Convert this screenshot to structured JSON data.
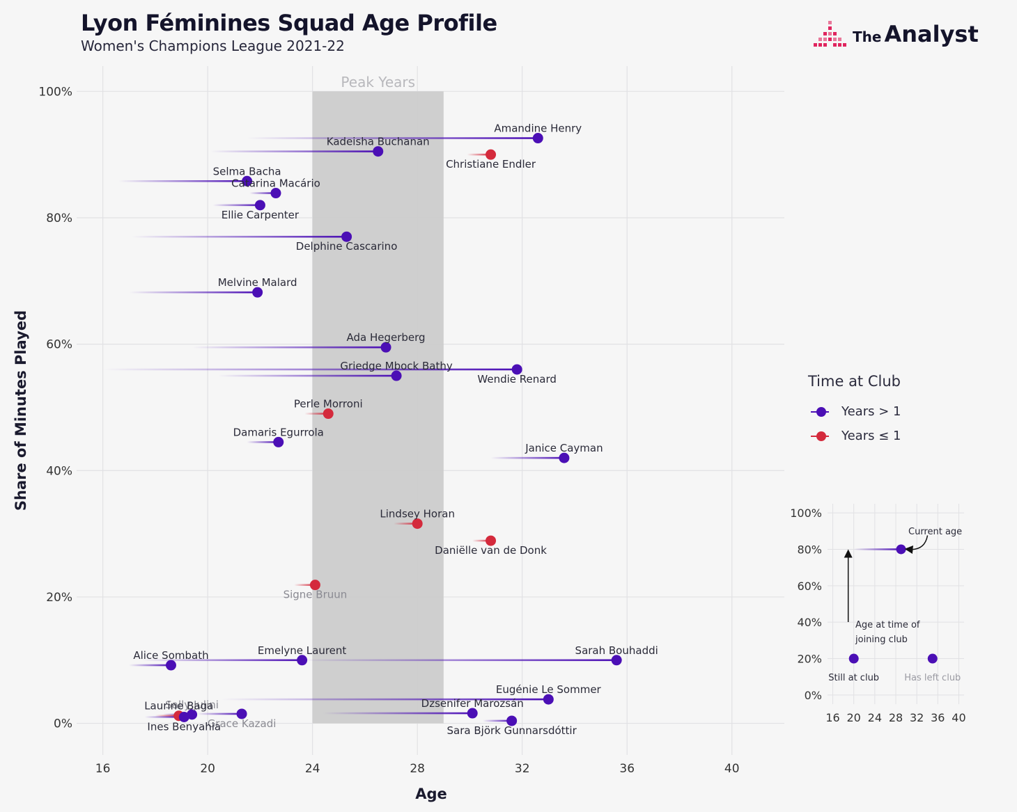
{
  "header": {
    "title": "Lyon Féminines Squad Age Profile",
    "subtitle": "Women's Champions League 2021-22",
    "logo_the": "The",
    "logo_analyst": "Analyst"
  },
  "colors": {
    "years_gt_1": "#4b0fb5",
    "years_le_1": "#d42a3c",
    "peak_band": "#cccccc",
    "logo_accent": "#e0245e"
  },
  "chart_data": [
    {
      "type": "scatter",
      "title": "",
      "xlabel": "Age",
      "ylabel": "Share of Minutes Played",
      "xlim": [
        15,
        42
      ],
      "ylim": [
        -5,
        104
      ],
      "xticks": [
        "16",
        "20",
        "24",
        "28",
        "32",
        "36",
        "40"
      ],
      "xtick_values": [
        16,
        20,
        24,
        28,
        32,
        36,
        40
      ],
      "yticks": [
        "0%",
        "20%",
        "40%",
        "60%",
        "80%",
        "100%"
      ],
      "ytick_values": [
        0,
        20,
        40,
        60,
        80,
        100
      ],
      "grid": true,
      "peak_band": {
        "label": "Peak Years",
        "from_age": 24,
        "to_age": 29,
        "from_share": 0,
        "to_share": 100
      },
      "legend": {
        "title": "Time at Club",
        "placement": "right",
        "entries": [
          {
            "label": "Years > 1",
            "group": "long"
          },
          {
            "label": "Years ≤ 1",
            "group": "short"
          }
        ]
      },
      "players": [
        {
          "name": "Amandine Henry",
          "age": 32.6,
          "joined": 21.5,
          "share": 92.6,
          "group": "long",
          "label_side": "above",
          "still": true
        },
        {
          "name": "Kadeisha Buchanan",
          "age": 26.5,
          "joined": 20.1,
          "share": 90.5,
          "group": "long",
          "label_side": "above",
          "still": true
        },
        {
          "name": "Christiane Endler",
          "age": 30.8,
          "joined": 29.9,
          "share": 90.0,
          "group": "short",
          "label_side": "below",
          "still": true
        },
        {
          "name": "Selma Bacha",
          "age": 21.5,
          "joined": 16.6,
          "share": 85.8,
          "group": "long",
          "label_side": "above",
          "still": true
        },
        {
          "name": "Catarina Macário",
          "age": 22.6,
          "joined": 21.6,
          "share": 83.9,
          "group": "long",
          "label_side": "above",
          "still": true
        },
        {
          "name": "Ellie Carpenter",
          "age": 22.0,
          "joined": 20.2,
          "share": 82.0,
          "group": "long",
          "label_side": "below",
          "still": true
        },
        {
          "name": "Delphine Cascarino",
          "age": 25.3,
          "joined": 17.1,
          "share": 77.0,
          "group": "long",
          "label_side": "below",
          "still": true
        },
        {
          "name": "Melvine Malard",
          "age": 21.9,
          "joined": 17.0,
          "share": 68.2,
          "group": "long",
          "label_side": "above",
          "still": true
        },
        {
          "name": "Ada Hegerberg",
          "age": 26.8,
          "joined": 19.4,
          "share": 59.5,
          "group": "long",
          "label_side": "above",
          "still": true
        },
        {
          "name": "Wendie Renard",
          "age": 31.8,
          "joined": 16.0,
          "share": 56.0,
          "group": "long",
          "label_side": "below",
          "still": true
        },
        {
          "name": "Griedge Mbock Bathy",
          "age": 27.2,
          "joined": 20.4,
          "share": 55.0,
          "group": "long",
          "label_side": "above",
          "still": true
        },
        {
          "name": "Perle Morroni",
          "age": 24.6,
          "joined": 23.7,
          "share": 49.0,
          "group": "short",
          "label_side": "above",
          "still": true
        },
        {
          "name": "Damaris Egurrola",
          "age": 22.7,
          "joined": 21.5,
          "share": 44.5,
          "group": "long",
          "label_side": "above",
          "still": true
        },
        {
          "name": "Janice Cayman",
          "age": 33.6,
          "joined": 30.8,
          "share": 42.0,
          "group": "long",
          "label_side": "above",
          "still": true
        },
        {
          "name": "Lindsey Horan",
          "age": 28.0,
          "joined": 27.1,
          "share": 31.6,
          "group": "short",
          "label_side": "above",
          "still": true
        },
        {
          "name": "Daniëlle van de Donk",
          "age": 30.8,
          "joined": 30.1,
          "share": 28.9,
          "group": "short",
          "label_side": "below",
          "still": true
        },
        {
          "name": "Signe Bruun",
          "age": 24.1,
          "joined": 23.3,
          "share": 21.9,
          "group": "short",
          "label_side": "below",
          "still": false
        },
        {
          "name": "Alice Sombath",
          "age": 18.6,
          "joined": 17.0,
          "share": 9.2,
          "group": "long",
          "label_side": "above",
          "still": true
        },
        {
          "name": "Emelyne Laurent",
          "age": 23.6,
          "joined": 17.5,
          "share": 10.0,
          "group": "long",
          "label_side": "above",
          "still": true
        },
        {
          "name": "Sarah Bouhaddi",
          "age": 35.6,
          "joined": 23.5,
          "share": 10.0,
          "group": "long",
          "label_side": "above",
          "still": true
        },
        {
          "name": "Eugénie Le Sommer",
          "age": 33.0,
          "joined": 20.5,
          "share": 3.8,
          "group": "long",
          "label_side": "above",
          "still": true
        },
        {
          "name": "Dzsenifer Marozsán",
          "age": 30.1,
          "joined": 24.4,
          "share": 1.6,
          "group": "long",
          "label_side": "above",
          "still": true
        },
        {
          "name": "Sara Björk Gunnarsdóttir",
          "age": 31.6,
          "joined": 30.5,
          "share": 0.4,
          "group": "long",
          "label_side": "below",
          "still": true
        },
        {
          "name": "Sally Julini",
          "age": 19.4,
          "joined": 18.3,
          "share": 1.4,
          "group": "long",
          "label_side": "above",
          "still": false
        },
        {
          "name": "Laurine Baga",
          "age": 18.9,
          "joined": 18.0,
          "share": 1.2,
          "group": "short",
          "label_side": "above",
          "still": true
        },
        {
          "name": "Grace Kazadi",
          "age": 21.3,
          "joined": 19.6,
          "share": 1.5,
          "group": "long",
          "label_side": "below",
          "still": false
        },
        {
          "name": "Ines Benyahia",
          "age": 19.1,
          "joined": 17.6,
          "share": 1.0,
          "group": "long",
          "label_side": "below",
          "still": true
        }
      ]
    },
    {
      "type": "scatter",
      "title": "",
      "xlim": [
        15,
        41
      ],
      "ylim": [
        -5,
        105
      ],
      "xticks": [
        "16",
        "20",
        "24",
        "28",
        "32",
        "36",
        "40"
      ],
      "xtick_values": [
        16,
        20,
        24,
        28,
        32,
        36,
        40
      ],
      "yticks": [
        "0%",
        "20%",
        "40%",
        "60%",
        "80%",
        "100%"
      ],
      "ytick_values": [
        0,
        20,
        40,
        60,
        80,
        100
      ],
      "grid": true,
      "annotations": {
        "current_age": "Current age",
        "joining_age_line1": "Age at time of",
        "joining_age_line2": "joining club",
        "still_at_club": "Still at club",
        "has_left_club": "Has left club"
      },
      "example": {
        "age": 29,
        "joined": 20,
        "share": 80
      },
      "still_point": {
        "age": 20,
        "share": 20
      },
      "left_point": {
        "age": 35,
        "share": 20
      }
    }
  ]
}
